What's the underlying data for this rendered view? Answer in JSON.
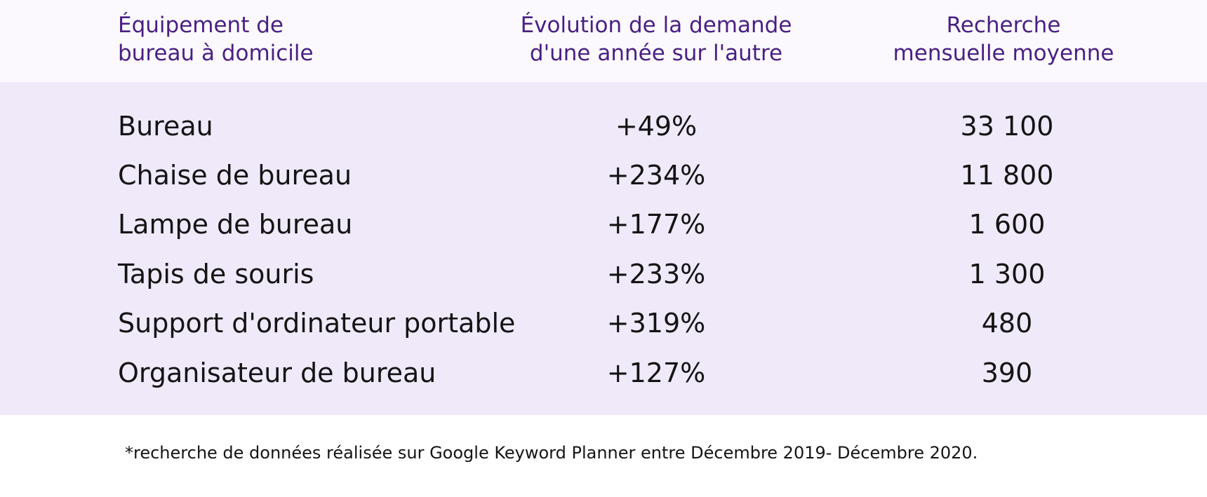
{
  "chart_data": {
    "type": "table",
    "columns": [
      {
        "line1": "Équipement de",
        "line2": "bureau à domicile"
      },
      {
        "line1": "Évolution de la demande",
        "line2": "d'une année sur l'autre"
      },
      {
        "line1": "Recherche",
        "line2": "mensuelle moyenne"
      }
    ],
    "rows": [
      {
        "item": "Bureau",
        "evolution": "+49%",
        "searches": "33 100"
      },
      {
        "item": "Chaise de bureau",
        "evolution": "+234%",
        "searches": "11 800"
      },
      {
        "item": "Lampe de bureau",
        "evolution": "+177%",
        "searches": "1 600"
      },
      {
        "item": "Tapis de souris",
        "evolution": "+233%",
        "searches": "1 300"
      },
      {
        "item": "Support d'ordinateur portable",
        "evolution": "+319%",
        "searches": "480"
      },
      {
        "item": "Organisateur de bureau",
        "evolution": "+127%",
        "searches": "390"
      }
    ],
    "footnote": "*recherche de données réalisée sur Google Keyword Planner entre Décembre 2019- Décembre 2020."
  },
  "colors": {
    "header_bg": "#fbf9fe",
    "header_text": "#4a1f82",
    "body_bg": "#f0e9fa",
    "body_text": "#141414"
  }
}
